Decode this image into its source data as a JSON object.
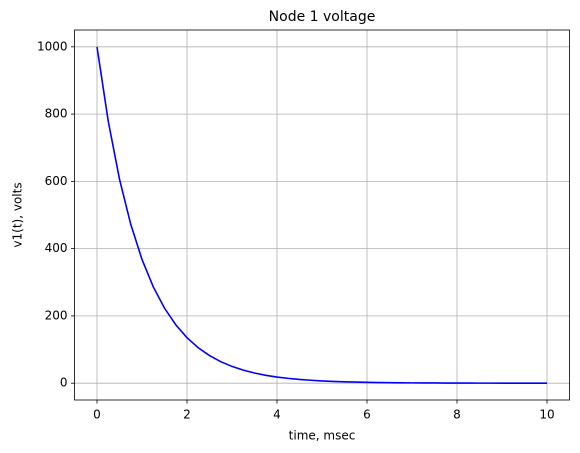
{
  "chart_data": {
    "type": "line",
    "title": "Node 1 voltage",
    "x_label": "time, msec",
    "y_label": "v1(t), volts",
    "x": [
      0,
      0.25,
      0.5,
      0.75,
      1,
      1.25,
      1.5,
      1.75,
      2,
      2.25,
      2.5,
      2.75,
      3,
      3.25,
      3.5,
      3.75,
      4,
      4.25,
      4.5,
      4.75,
      5,
      5.25,
      5.5,
      5.75,
      6,
      6.25,
      6.5,
      6.75,
      7,
      7.25,
      7.5,
      7.75,
      8,
      8.25,
      8.5,
      8.75,
      9,
      9.25,
      9.5,
      9.75,
      10
    ],
    "series": [
      {
        "name": "v1",
        "color": "#0000ff",
        "values": [
          1000,
          778.8,
          606.5,
          472.4,
          367.9,
          286.5,
          223.1,
          173.8,
          135.3,
          105.4,
          82.1,
          63.9,
          49.8,
          38.8,
          30.2,
          23.5,
          18.3,
          14.3,
          11.1,
          8.7,
          6.7,
          5.2,
          4.1,
          3.2,
          2.5,
          1.9,
          1.5,
          1.2,
          0.9,
          0.7,
          0.6,
          0.4,
          0.3,
          0.3,
          0.2,
          0.2,
          0.1,
          0.1,
          0.1,
          0.1,
          0
        ]
      }
    ],
    "xlim": [
      -0.5,
      10.5
    ],
    "ylim": [
      -50,
      1050
    ],
    "xticks": [
      0,
      2,
      4,
      6,
      8,
      10
    ],
    "yticks": [
      0,
      200,
      400,
      600,
      800,
      1000
    ],
    "grid": true
  }
}
